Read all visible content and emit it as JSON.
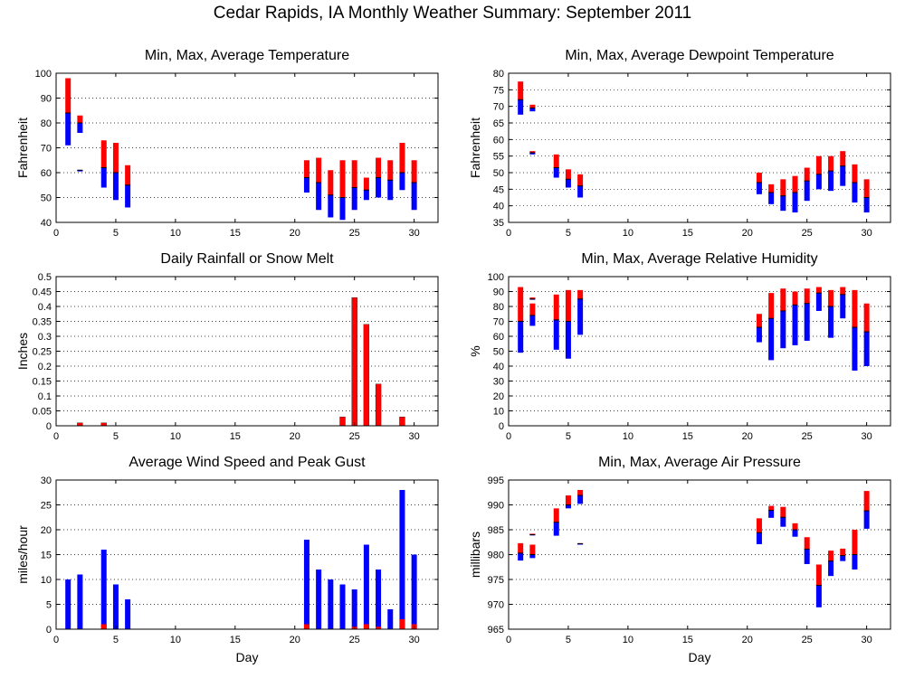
{
  "title": "Cedar Rapids, IA Monthly Weather Summary: September 2011",
  "colors": {
    "max": "#ff0000",
    "min": "#0000ff",
    "frame": "#000000"
  },
  "chart_data": [
    {
      "id": "temp",
      "type": "bar",
      "title": "Min, Max, Average Temperature",
      "xlabel": "",
      "ylabel": "Fahrenheit",
      "xlim": [
        0,
        32
      ],
      "ylim": [
        40,
        100
      ],
      "yticks": [
        40,
        50,
        60,
        70,
        80,
        90,
        100
      ],
      "xticks": [
        0,
        5,
        10,
        15,
        20,
        25,
        30
      ],
      "style": "range",
      "series": [
        {
          "x": 1,
          "max": 98,
          "avg": 84,
          "min": 71
        },
        {
          "x": 2,
          "max": 83,
          "avg": 80,
          "min": 76
        },
        {
          "x": 2,
          "max": 61,
          "avg": 61,
          "min": 60.5
        },
        {
          "x": 4,
          "max": 73,
          "avg": 62,
          "min": 54
        },
        {
          "x": 5,
          "max": 72,
          "avg": 60,
          "min": 49
        },
        {
          "x": 6,
          "max": 63,
          "avg": 55,
          "min": 46
        },
        {
          "x": 21,
          "max": 65,
          "avg": 58,
          "min": 52
        },
        {
          "x": 22,
          "max": 66,
          "avg": 56,
          "min": 45
        },
        {
          "x": 23,
          "max": 61,
          "avg": 51,
          "min": 42
        },
        {
          "x": 24,
          "max": 65,
          "avg": 50,
          "min": 41
        },
        {
          "x": 25,
          "max": 65,
          "avg": 54,
          "min": 45
        },
        {
          "x": 26,
          "max": 58,
          "avg": 53,
          "min": 49
        },
        {
          "x": 27,
          "max": 66,
          "avg": 58,
          "min": 50
        },
        {
          "x": 28,
          "max": 65,
          "avg": 57,
          "min": 49
        },
        {
          "x": 29,
          "max": 72,
          "avg": 60,
          "min": 53
        },
        {
          "x": 30,
          "max": 65,
          "avg": 56,
          "min": 45
        }
      ]
    },
    {
      "id": "dew",
      "type": "bar",
      "title": "Min, Max, Average Dewpoint Temperature",
      "xlabel": "",
      "ylabel": "Fahrenheit",
      "xlim": [
        0,
        32
      ],
      "ylim": [
        35,
        80
      ],
      "yticks": [
        35,
        40,
        45,
        50,
        55,
        60,
        65,
        70,
        75,
        80
      ],
      "xticks": [
        0,
        5,
        10,
        15,
        20,
        25,
        30
      ],
      "style": "range",
      "series": [
        {
          "x": 1,
          "max": 77.5,
          "avg": 72,
          "min": 67.5
        },
        {
          "x": 2,
          "max": 70.5,
          "avg": 69.5,
          "min": 68.5
        },
        {
          "x": 2,
          "max": 56.5,
          "avg": 56,
          "min": 55.5
        },
        {
          "x": 4,
          "max": 55.5,
          "avg": 51.5,
          "min": 48.5
        },
        {
          "x": 5,
          "max": 51,
          "avg": 48,
          "min": 45.5
        },
        {
          "x": 6,
          "max": 49.5,
          "avg": 46,
          "min": 42.5
        },
        {
          "x": 21,
          "max": 50,
          "avg": 47,
          "min": 43.5
        },
        {
          "x": 22,
          "max": 46.5,
          "avg": 44,
          "min": 40.5
        },
        {
          "x": 23,
          "max": 48,
          "avg": 43,
          "min": 38.5
        },
        {
          "x": 24,
          "max": 49,
          "avg": 44,
          "min": 38
        },
        {
          "x": 25,
          "max": 51.5,
          "avg": 47.5,
          "min": 41.5
        },
        {
          "x": 26,
          "max": 55,
          "avg": 49.5,
          "min": 45
        },
        {
          "x": 27,
          "max": 55,
          "avg": 50.5,
          "min": 44.5
        },
        {
          "x": 28,
          "max": 56.5,
          "avg": 52,
          "min": 46
        },
        {
          "x": 29,
          "max": 52.5,
          "avg": 47,
          "min": 41
        },
        {
          "x": 30,
          "max": 48,
          "avg": 42.5,
          "min": 38
        }
      ]
    },
    {
      "id": "rain",
      "type": "bar",
      "title": "Daily Rainfall or Snow Melt",
      "xlabel": "",
      "ylabel": "Inches",
      "xlim": [
        0,
        32
      ],
      "ylim": [
        0,
        0.5
      ],
      "yticks": [
        0,
        0.05,
        0.1,
        0.15,
        0.2,
        0.25,
        0.3,
        0.35,
        0.4,
        0.45,
        0.5
      ],
      "xticks": [
        0,
        5,
        10,
        15,
        20,
        25,
        30
      ],
      "style": "single",
      "series": [
        {
          "x": 2,
          "value": 0.01
        },
        {
          "x": 4,
          "value": 0.01
        },
        {
          "x": 24,
          "value": 0.03
        },
        {
          "x": 25,
          "value": 0.43
        },
        {
          "x": 26,
          "value": 0.34
        },
        {
          "x": 27,
          "value": 0.14
        },
        {
          "x": 29,
          "value": 0.03
        }
      ]
    },
    {
      "id": "rh",
      "type": "bar",
      "title": "Min, Max, Average Relative Humidity",
      "xlabel": "",
      "ylabel": "%",
      "xlim": [
        0,
        32
      ],
      "ylim": [
        0,
        100
      ],
      "yticks": [
        0,
        10,
        20,
        30,
        40,
        50,
        60,
        70,
        80,
        90,
        100
      ],
      "xticks": [
        0,
        5,
        10,
        15,
        20,
        25,
        30
      ],
      "style": "range",
      "series": [
        {
          "x": 1,
          "max": 93,
          "avg": 70,
          "min": 49
        },
        {
          "x": 2,
          "max": 82,
          "avg": 74,
          "min": 67
        },
        {
          "x": 2,
          "max": 86,
          "avg": 85,
          "min": 84.5
        },
        {
          "x": 4,
          "max": 88,
          "avg": 71,
          "min": 51
        },
        {
          "x": 5,
          "max": 91,
          "avg": 70,
          "min": 45
        },
        {
          "x": 6,
          "max": 91,
          "avg": 85,
          "min": 61
        },
        {
          "x": 21,
          "max": 75,
          "avg": 66,
          "min": 56
        },
        {
          "x": 22,
          "max": 89,
          "avg": 72,
          "min": 44
        },
        {
          "x": 23,
          "max": 92,
          "avg": 77,
          "min": 52
        },
        {
          "x": 24,
          "max": 90,
          "avg": 81,
          "min": 54
        },
        {
          "x": 25,
          "max": 92,
          "avg": 82,
          "min": 57
        },
        {
          "x": 26,
          "max": 93,
          "avg": 89,
          "min": 77
        },
        {
          "x": 27,
          "max": 91,
          "avg": 80,
          "min": 59
        },
        {
          "x": 28,
          "max": 93,
          "avg": 88,
          "min": 72
        },
        {
          "x": 29,
          "max": 91,
          "avg": 66,
          "min": 37
        },
        {
          "x": 30,
          "max": 82,
          "avg": 63,
          "min": 40
        }
      ]
    },
    {
      "id": "wind",
      "type": "bar",
      "title": "Average Wind Speed and Peak Gust",
      "xlabel": "Day",
      "ylabel": "miles/hour",
      "xlim": [
        0,
        32
      ],
      "ylim": [
        0,
        30
      ],
      "yticks": [
        0,
        5,
        10,
        15,
        20,
        25,
        30
      ],
      "xticks": [
        0,
        5,
        10,
        15,
        20,
        25,
        30
      ],
      "style": "wind",
      "series": [
        {
          "x": 1,
          "gust": 10,
          "avg": 0
        },
        {
          "x": 2,
          "gust": 11,
          "avg": 0
        },
        {
          "x": 4,
          "gust": 16,
          "avg": 1
        },
        {
          "x": 5,
          "gust": 9,
          "avg": 0
        },
        {
          "x": 6,
          "gust": 6,
          "avg": 0
        },
        {
          "x": 21,
          "gust": 18,
          "avg": 1
        },
        {
          "x": 22,
          "gust": 12,
          "avg": 0
        },
        {
          "x": 23,
          "gust": 10,
          "avg": 0
        },
        {
          "x": 24,
          "gust": 9,
          "avg": 0
        },
        {
          "x": 25,
          "gust": 8,
          "avg": 0.5
        },
        {
          "x": 26,
          "gust": 17,
          "avg": 1
        },
        {
          "x": 27,
          "gust": 12,
          "avg": 0.5
        },
        {
          "x": 28,
          "gust": 4,
          "avg": 0
        },
        {
          "x": 29,
          "gust": 28,
          "avg": 2
        },
        {
          "x": 30,
          "gust": 15,
          "avg": 1
        }
      ]
    },
    {
      "id": "pres",
      "type": "bar",
      "title": "Min, Max, Average Air Pressure",
      "xlabel": "Day",
      "ylabel": "millibars",
      "xlim": [
        0,
        32
      ],
      "ylim": [
        965,
        995
      ],
      "yticks": [
        965,
        970,
        975,
        980,
        985,
        990,
        995
      ],
      "xticks": [
        0,
        5,
        10,
        15,
        20,
        25,
        30
      ],
      "style": "range",
      "series": [
        {
          "x": 1,
          "max": 982.3,
          "avg": 980.3,
          "min": 978.8
        },
        {
          "x": 2,
          "max": 982,
          "avg": 980,
          "min": 979.3
        },
        {
          "x": 2,
          "max": 984.2,
          "avg": 984,
          "min": 983.9
        },
        {
          "x": 4,
          "max": 989.3,
          "avg": 986.5,
          "min": 983.8
        },
        {
          "x": 5,
          "max": 991.9,
          "avg": 990,
          "min": 989.3
        },
        {
          "x": 6,
          "max": 993,
          "avg": 991.9,
          "min": 990.2
        },
        {
          "x": 6,
          "max": 982.3,
          "avg": 982.2,
          "min": 982
        },
        {
          "x": 21,
          "max": 987.3,
          "avg": 984.4,
          "min": 982.1
        },
        {
          "x": 22,
          "max": 989.8,
          "avg": 988.9,
          "min": 987.4
        },
        {
          "x": 23,
          "max": 989.6,
          "avg": 987.5,
          "min": 985.6
        },
        {
          "x": 24,
          "max": 986.3,
          "avg": 985,
          "min": 983.6
        },
        {
          "x": 25,
          "max": 983.5,
          "avg": 981.1,
          "min": 978.1
        },
        {
          "x": 26,
          "max": 978,
          "avg": 973.8,
          "min": 969.4
        },
        {
          "x": 27,
          "max": 980.8,
          "avg": 978.7,
          "min": 975.7
        },
        {
          "x": 28,
          "max": 981.2,
          "avg": 979.8,
          "min": 978.7
        },
        {
          "x": 29,
          "max": 985,
          "avg": 980,
          "min": 977
        },
        {
          "x": 30,
          "max": 992.8,
          "avg": 988.8,
          "min": 985.2
        }
      ]
    }
  ]
}
